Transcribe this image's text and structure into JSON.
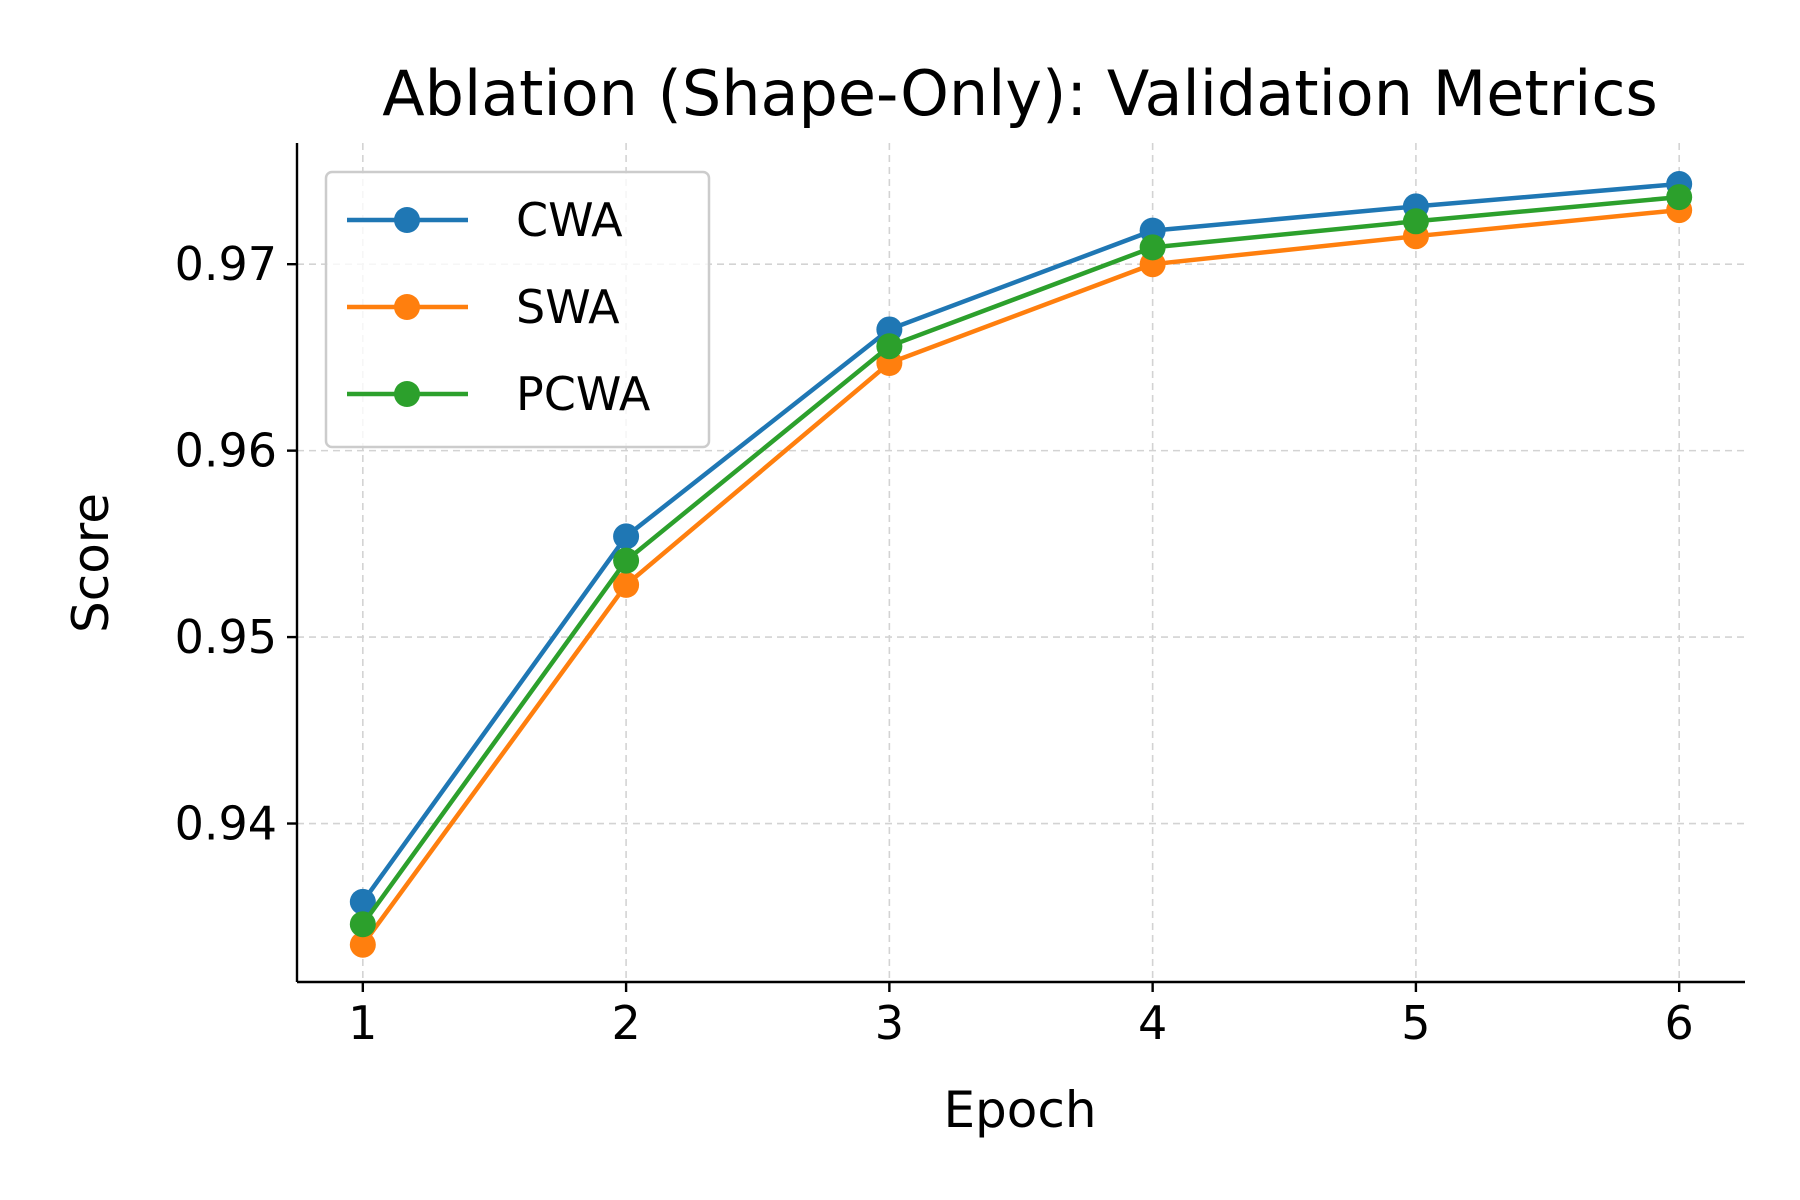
{
  "chart_data": {
    "type": "line",
    "title": "Ablation (Shape-Only): Validation Metrics",
    "xlabel": "Epoch",
    "ylabel": "Score",
    "x": [
      1,
      2,
      3,
      4,
      5,
      6
    ],
    "x_tick_labels": [
      "1",
      "2",
      "3",
      "4",
      "5",
      "6"
    ],
    "y_ticks": [
      0.94,
      0.95,
      0.96,
      0.97
    ],
    "y_tick_labels": [
      "0.94",
      "0.95",
      "0.96",
      "0.97"
    ],
    "xlim": [
      0.75,
      6.25
    ],
    "ylim": [
      0.9315,
      0.9765
    ],
    "grid": true,
    "legend_position": "upper-left",
    "series": [
      {
        "name": "CWA",
        "color": "#1f77b4",
        "marker": "circle",
        "values": [
          0.9358,
          0.9554,
          0.9665,
          0.9718,
          0.9731,
          0.9743
        ]
      },
      {
        "name": "SWA",
        "color": "#ff7f0e",
        "marker": "circle",
        "values": [
          0.9335,
          0.9528,
          0.9647,
          0.97,
          0.9715,
          0.9729
        ]
      },
      {
        "name": "PCWA",
        "color": "#2ca02c",
        "marker": "circle",
        "values": [
          0.9346,
          0.9541,
          0.9656,
          0.9709,
          0.9723,
          0.9736
        ]
      }
    ]
  }
}
